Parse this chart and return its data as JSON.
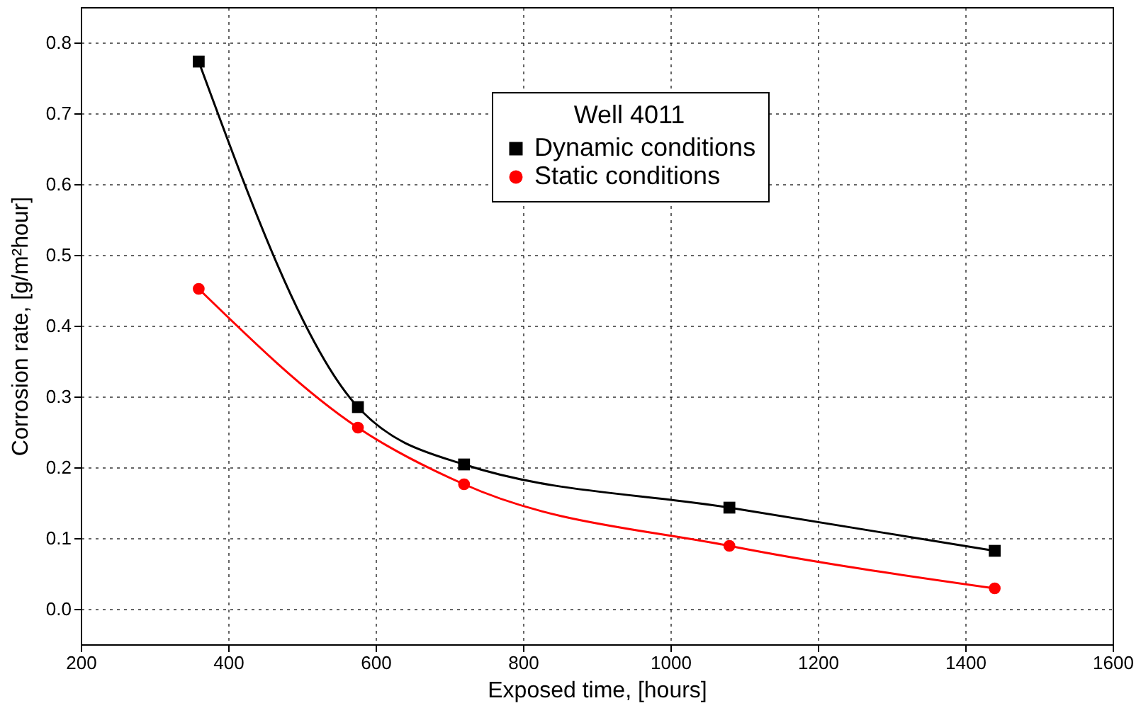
{
  "chart_data": {
    "type": "line",
    "xlabel": "Exposed time, [hours]",
    "ylabel": "Corrosion rate, [g/m²hour]",
    "legend_title": "Well 4011",
    "x": [
      360,
      576,
      720,
      1080,
      1440
    ],
    "series": [
      {
        "name": "Dynamic conditions",
        "color": "#000000",
        "marker": "square",
        "values": [
          0.773,
          0.285,
          0.204,
          0.143,
          0.082
        ]
      },
      {
        "name": "Static conditions",
        "color": "#ff0000",
        "marker": "circle",
        "values": [
          0.452,
          0.256,
          0.176,
          0.089,
          0.029
        ]
      }
    ],
    "xlim": [
      200,
      1600
    ],
    "xticks": [
      200,
      400,
      600,
      800,
      1000,
      1200,
      1400,
      1600
    ],
    "ylim": [
      -0.05,
      0.85
    ],
    "yticks": [
      {
        "value": 0,
        "label": "0.0"
      },
      0.1,
      0.2,
      0.3,
      0.4,
      0.5,
      0.6,
      0.7,
      0.8
    ],
    "grid": true,
    "legend": "top right",
    "line_style": "solid"
  }
}
